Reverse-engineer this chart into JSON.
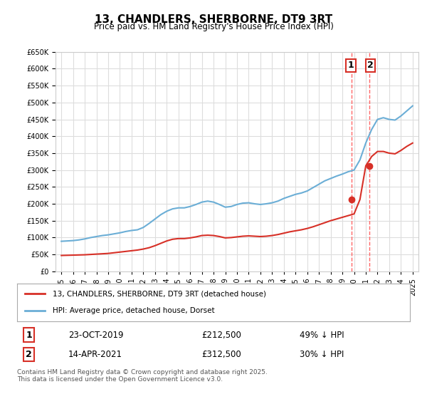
{
  "title": "13, CHANDLERS, SHERBORNE, DT9 3RT",
  "subtitle": "Price paid vs. HM Land Registry's House Price Index (HPI)",
  "legend_line1": "13, CHANDLERS, SHERBORNE, DT9 3RT (detached house)",
  "legend_line2": "HPI: Average price, detached house, Dorset",
  "transaction1_date": "23-OCT-2019",
  "transaction1_price": 212500,
  "transaction1_label": "49% ↓ HPI",
  "transaction2_date": "14-APR-2021",
  "transaction2_price": 312500,
  "transaction2_label": "30% ↓ HPI",
  "footnote": "Contains HM Land Registry data © Crown copyright and database right 2025.\nThis data is licensed under the Open Government Licence v3.0.",
  "hpi_color": "#6baed6",
  "price_color": "#d73027",
  "vline_color": "#ff6666",
  "background_color": "#ffffff",
  "plot_bg_color": "#ffffff",
  "grid_color": "#dddddd",
  "ylim": [
    0,
    650000
  ],
  "yticks": [
    0,
    50000,
    100000,
    150000,
    200000,
    250000,
    300000,
    350000,
    400000,
    450000,
    500000,
    550000,
    600000,
    650000
  ],
  "sale1_x": 2019.81,
  "sale2_x": 2021.29,
  "hpi_years": [
    1995,
    1995.5,
    1996,
    1996.5,
    1997,
    1997.5,
    1998,
    1998.5,
    1999,
    1999.5,
    2000,
    2000.5,
    2001,
    2001.5,
    2002,
    2002.5,
    2003,
    2003.5,
    2004,
    2004.5,
    2005,
    2005.5,
    2006,
    2006.5,
    2007,
    2007.5,
    2008,
    2008.5,
    2009,
    2009.5,
    2010,
    2010.5,
    2011,
    2011.5,
    2012,
    2012.5,
    2013,
    2013.5,
    2014,
    2014.5,
    2015,
    2015.5,
    2016,
    2016.5,
    2017,
    2017.5,
    2018,
    2018.5,
    2019,
    2019.5,
    2020,
    2020.5,
    2021,
    2021.5,
    2022,
    2022.5,
    2023,
    2023.5,
    2024,
    2024.5,
    2025
  ],
  "hpi_values": [
    89000,
    90000,
    91000,
    93000,
    96000,
    100000,
    103000,
    106000,
    108000,
    111000,
    114000,
    118000,
    121000,
    123000,
    130000,
    142000,
    155000,
    168000,
    178000,
    185000,
    188000,
    188000,
    192000,
    198000,
    205000,
    208000,
    205000,
    198000,
    190000,
    192000,
    198000,
    202000,
    203000,
    200000,
    198000,
    200000,
    203000,
    208000,
    216000,
    222000,
    228000,
    232000,
    238000,
    248000,
    258000,
    268000,
    275000,
    282000,
    288000,
    295000,
    300000,
    330000,
    380000,
    420000,
    450000,
    455000,
    450000,
    448000,
    460000,
    475000,
    490000
  ],
  "price_years": [
    1995,
    1995.5,
    1996,
    1996.5,
    1997,
    1997.5,
    1998,
    1998.5,
    1999,
    1999.5,
    2000,
    2000.5,
    2001,
    2001.5,
    2002,
    2002.5,
    2003,
    2003.5,
    2004,
    2004.5,
    2005,
    2005.5,
    2006,
    2006.5,
    2007,
    2007.5,
    2008,
    2008.5,
    2009,
    2009.5,
    2010,
    2010.5,
    2011,
    2011.5,
    2012,
    2012.5,
    2013,
    2013.5,
    2014,
    2014.5,
    2015,
    2015.5,
    2016,
    2016.5,
    2017,
    2017.5,
    2018,
    2018.5,
    2019,
    2019.5,
    2020,
    2020.5,
    2021,
    2021.5,
    2022,
    2022.5,
    2023,
    2023.5,
    2024,
    2024.5,
    2025
  ],
  "price_values": [
    47000,
    47500,
    48000,
    48500,
    49000,
    50000,
    51000,
    52000,
    53000,
    55000,
    57000,
    59000,
    61000,
    63000,
    66000,
    70000,
    76000,
    83000,
    90000,
    95000,
    97000,
    97000,
    99000,
    102000,
    106000,
    107000,
    106000,
    103000,
    99000,
    100000,
    102000,
    104000,
    105000,
    104000,
    103000,
    104000,
    106000,
    109000,
    113000,
    117000,
    120000,
    123000,
    127000,
    132000,
    138000,
    144000,
    150000,
    155000,
    160000,
    165000,
    170000,
    212500,
    312500,
    340000,
    355000,
    355000,
    350000,
    348000,
    358000,
    370000,
    380000
  ]
}
